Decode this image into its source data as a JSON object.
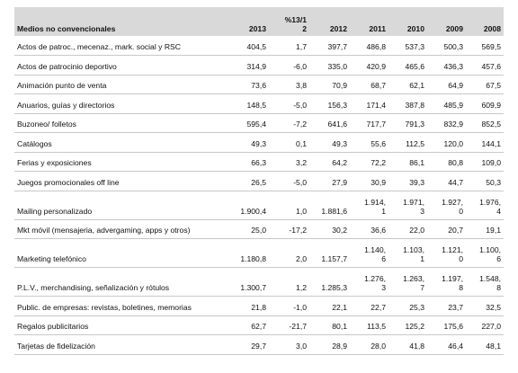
{
  "table": {
    "header": [
      "Medios no convencionales",
      "2013",
      "%13/1\n2",
      "2012",
      "2011",
      "2010",
      "2009",
      "2008"
    ],
    "rows": [
      {
        "label": "Actos de patroc., mecenaz., mark. social y RSC",
        "values": [
          "404,5",
          "1,7",
          "397,7",
          "486,8",
          "537,3",
          "500,3",
          "569,5"
        ]
      },
      {
        "label": "Actos de patrocinio deportivo",
        "values": [
          "314,9",
          "-6,0",
          "335,0",
          "420,9",
          "465,6",
          "436,3",
          "457,6"
        ]
      },
      {
        "label": "Animación punto de venta",
        "values": [
          "73,6",
          "3,8",
          "70,9",
          "68,7",
          "62,1",
          "64,9",
          "67,5"
        ]
      },
      {
        "label": "Anuarios, guías y directorios",
        "values": [
          "148,5",
          "-5,0",
          "156,3",
          "171,4",
          "387,8",
          "485,9",
          "609,9"
        ]
      },
      {
        "label": "Buzoneo/ folletos",
        "values": [
          "595,4",
          "-7,2",
          "641,6",
          "717,7",
          "791,3",
          "832,9",
          "852,5"
        ]
      },
      {
        "label": "Catálogos",
        "values": [
          "49,3",
          "0,1",
          "49,3",
          "55,6",
          "112,5",
          "120,0",
          "144,1"
        ]
      },
      {
        "label": "Ferias y exposiciones",
        "values": [
          "66,3",
          "3,2",
          "64,2",
          "72,2",
          "86,1",
          "80,8",
          "109,0"
        ]
      },
      {
        "label": "Juegos promocionales off line",
        "values": [
          "26,5",
          "-5,0",
          "27,9",
          "30,9",
          "39,3",
          "44,7",
          "50,3"
        ]
      },
      {
        "label": "Mailing personalizado",
        "tall": true,
        "values": [
          "1.900,4",
          "1,0",
          "1.881,6",
          "1.914,\n1",
          "1.971,\n3",
          "1.927,\n0",
          "1.976,\n4"
        ]
      },
      {
        "label": "Mkt móvil (mensajeria, advergaming, apps y otros)",
        "values": [
          "25,0",
          "-17,2",
          "30,2",
          "36,6",
          "22,0",
          "20,7",
          "19,1"
        ]
      },
      {
        "label": "Marketing telefónico",
        "tall": true,
        "values": [
          "1.180,8",
          "2,0",
          "1.157,7",
          "1.140,\n6",
          "1.103,\n1",
          "1.121,\n0",
          "1.100,\n6"
        ]
      },
      {
        "label": "P.L.V., merchandising, señalización y rótulos",
        "tall": true,
        "values": [
          "1.300,7",
          "1,2",
          "1.285,3",
          "1.276,\n3",
          "1.263,\n7",
          "1.197,\n8",
          "1.548,\n8"
        ]
      },
      {
        "label": "Public. de empresas: revistas, boletines, memorias",
        "values": [
          "21,8",
          "-1,0",
          "22,1",
          "22,7",
          "25,3",
          "23,7",
          "32,5"
        ]
      },
      {
        "label": "Regalos publicitarios",
        "values": [
          "62,7",
          "-21,7",
          "80,1",
          "113,5",
          "125,2",
          "175,6",
          "227,0"
        ]
      },
      {
        "label": "Tarjetas de fidelización",
        "values": [
          "29,7",
          "3,0",
          "28,9",
          "28,0",
          "41,8",
          "46,4",
          "48,1"
        ]
      }
    ]
  }
}
